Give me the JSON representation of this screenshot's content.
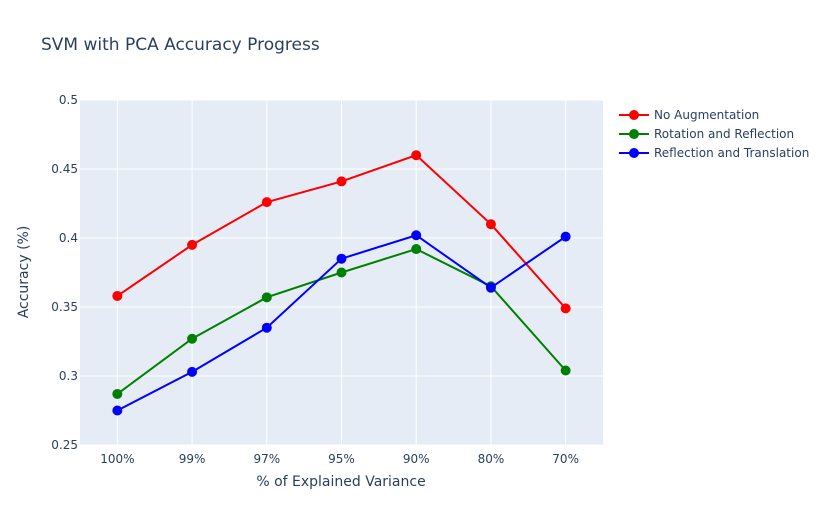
{
  "chart_data": {
    "type": "line",
    "title": "SVM with PCA Accuracy Progress",
    "xlabel": "% of Explained Variance",
    "ylabel": "Accuracy (%)",
    "categories": [
      "100%",
      "99%",
      "97%",
      "95%",
      "90%",
      "80%",
      "70%"
    ],
    "ylim": [
      0.25,
      0.5
    ],
    "yticks": [
      0.25,
      0.3,
      0.35,
      0.4,
      0.45,
      0.5
    ],
    "ytick_labels": [
      "0.25",
      "0.3",
      "0.35",
      "0.4",
      "0.45",
      "0.5"
    ],
    "grid": true,
    "legend_position": "top-right",
    "series": [
      {
        "name": "No Augmentation",
        "color": "#ff0000",
        "values": [
          0.358,
          0.395,
          0.426,
          0.441,
          0.46,
          0.41,
          0.349
        ]
      },
      {
        "name": "Rotation and Reflection",
        "color": "#008000",
        "values": [
          0.287,
          0.327,
          0.357,
          0.375,
          0.392,
          0.365,
          0.304
        ]
      },
      {
        "name": "Reflection and Translation",
        "color": "#0000ff",
        "values": [
          0.275,
          0.303,
          0.335,
          0.385,
          0.402,
          0.364,
          0.401
        ]
      }
    ]
  }
}
